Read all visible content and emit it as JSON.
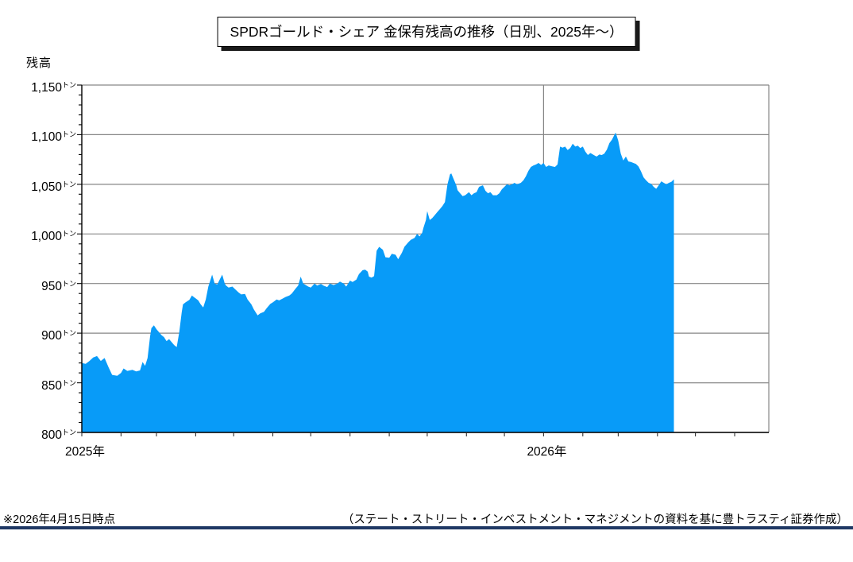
{
  "chart_data": {
    "type": "area",
    "title": "SPDRゴールド・シェア 金保有残高の推移（日別、2025年～）",
    "ylabel": "残高",
    "unit": "トン",
    "ylim": [
      800,
      1150
    ],
    "y_major_step": 50,
    "y_minor_step": 10,
    "y_tick_labels": [
      "1,150",
      "1,100",
      "1,050",
      "1,000",
      "950",
      "900",
      "850",
      "800"
    ],
    "x_ticks": [
      {
        "label": "2025年",
        "day": 0
      },
      {
        "label": "2026年",
        "day": 365
      }
    ],
    "x_month_tick_days": [
      0,
      31,
      59,
      90,
      120,
      151,
      181,
      212,
      243,
      273,
      304,
      334,
      365,
      396,
      424,
      455,
      485,
      516
    ],
    "x_axis_end_day": 543,
    "x_year_gridline_day": 365,
    "grid": true,
    "legend_position": "none",
    "series": [
      {
        "name": "金保有残高",
        "color": "#089bf8",
        "points": [
          [
            0,
            870
          ],
          [
            3,
            869
          ],
          [
            6,
            872
          ],
          [
            9,
            875.5
          ],
          [
            12,
            877
          ],
          [
            15,
            872
          ],
          [
            18,
            875
          ],
          [
            21,
            866
          ],
          [
            24,
            858
          ],
          [
            28,
            857
          ],
          [
            31,
            860
          ],
          [
            33,
            864.5
          ],
          [
            36,
            862
          ],
          [
            40,
            863
          ],
          [
            43,
            861.5
          ],
          [
            46,
            862.5
          ],
          [
            48,
            871
          ],
          [
            50,
            867
          ],
          [
            52,
            875
          ],
          [
            54,
            897
          ],
          [
            55,
            905
          ],
          [
            57,
            908
          ],
          [
            59,
            904
          ],
          [
            61,
            901
          ],
          [
            63,
            898
          ],
          [
            65,
            896
          ],
          [
            67,
            892
          ],
          [
            69,
            894
          ],
          [
            71,
            891
          ],
          [
            73,
            888
          ],
          [
            75,
            886
          ],
          [
            77,
            901
          ],
          [
            79,
            921
          ],
          [
            80,
            929
          ],
          [
            82,
            931
          ],
          [
            85,
            933.5
          ],
          [
            87,
            938
          ],
          [
            89,
            936
          ],
          [
            90,
            935
          ],
          [
            92,
            933
          ],
          [
            94,
            929
          ],
          [
            96,
            926
          ],
          [
            98,
            934
          ],
          [
            100,
            947
          ],
          [
            102,
            955
          ],
          [
            103,
            959
          ],
          [
            105,
            950
          ],
          [
            107,
            949
          ],
          [
            109,
            954
          ],
          [
            111,
            959
          ],
          [
            113,
            950
          ],
          [
            114,
            948
          ],
          [
            116,
            946
          ],
          [
            119,
            947
          ],
          [
            121,
            944.5
          ],
          [
            124,
            941
          ],
          [
            126,
            939
          ],
          [
            129,
            939.5
          ],
          [
            131,
            934
          ],
          [
            134,
            929
          ],
          [
            136,
            924
          ],
          [
            139,
            918
          ],
          [
            141,
            920
          ],
          [
            144,
            921.5
          ],
          [
            146,
            925
          ],
          [
            149,
            929.5
          ],
          [
            151,
            931
          ],
          [
            154,
            934
          ],
          [
            156,
            933
          ],
          [
            159,
            935
          ],
          [
            161,
            936.5
          ],
          [
            164,
            938
          ],
          [
            166,
            940
          ],
          [
            169,
            945
          ],
          [
            171,
            948
          ],
          [
            173,
            957
          ],
          [
            175,
            950
          ],
          [
            177,
            948.5
          ],
          [
            179,
            947
          ],
          [
            181,
            946
          ],
          [
            184,
            950
          ],
          [
            186,
            948
          ],
          [
            189,
            949.5
          ],
          [
            191,
            948
          ],
          [
            194,
            946.5
          ],
          [
            196,
            950
          ],
          [
            199,
            948.5
          ],
          [
            202,
            950
          ],
          [
            204,
            952
          ],
          [
            207,
            950
          ],
          [
            209,
            947
          ],
          [
            212,
            953
          ],
          [
            214,
            951.5
          ],
          [
            217,
            954
          ],
          [
            219,
            959.5
          ],
          [
            222,
            963.5
          ],
          [
            224,
            964
          ],
          [
            226,
            962
          ],
          [
            227,
            957
          ],
          [
            229,
            956
          ],
          [
            231,
            957.5
          ],
          [
            233,
            983
          ],
          [
            235,
            987
          ],
          [
            238,
            984
          ],
          [
            240,
            976.5
          ],
          [
            243,
            976
          ],
          [
            245,
            980
          ],
          [
            248,
            979
          ],
          [
            250,
            974.5
          ],
          [
            253,
            981
          ],
          [
            255,
            987
          ],
          [
            258,
            991.5
          ],
          [
            260,
            994
          ],
          [
            263,
            996
          ],
          [
            265,
            1000
          ],
          [
            267,
            997.5
          ],
          [
            269,
            1001
          ],
          [
            270,
            1006
          ],
          [
            272,
            1014
          ],
          [
            273,
            1023
          ],
          [
            275,
            1014
          ],
          [
            277,
            1016
          ],
          [
            279,
            1019
          ],
          [
            281,
            1022
          ],
          [
            283,
            1025
          ],
          [
            285,
            1028
          ],
          [
            287,
            1032
          ],
          [
            289,
            1050
          ],
          [
            291,
            1060
          ],
          [
            292,
            1061
          ],
          [
            294,
            1055
          ],
          [
            296,
            1049
          ],
          [
            297,
            1044
          ],
          [
            299,
            1041
          ],
          [
            301,
            1038
          ],
          [
            303,
            1039
          ],
          [
            306,
            1042
          ],
          [
            308,
            1039
          ],
          [
            310,
            1041
          ],
          [
            312,
            1042
          ],
          [
            314,
            1047.5
          ],
          [
            317,
            1049
          ],
          [
            319,
            1043.5
          ],
          [
            321,
            1041
          ],
          [
            323,
            1042
          ],
          [
            325,
            1039
          ],
          [
            328,
            1039
          ],
          [
            330,
            1041
          ],
          [
            332,
            1045
          ],
          [
            334,
            1047.5
          ],
          [
            336,
            1050
          ],
          [
            338,
            1049
          ],
          [
            340,
            1050
          ],
          [
            342,
            1051.5
          ],
          [
            344,
            1050
          ],
          [
            347,
            1051.5
          ],
          [
            349,
            1054
          ],
          [
            351,
            1058
          ],
          [
            353,
            1063.5
          ],
          [
            355,
            1067.5
          ],
          [
            357,
            1069
          ],
          [
            359,
            1070
          ],
          [
            361,
            1071.5
          ],
          [
            363,
            1069.5
          ],
          [
            365,
            1071.5
          ],
          [
            367,
            1067.5
          ],
          [
            369,
            1069
          ],
          [
            372,
            1068
          ],
          [
            374,
            1067.5
          ],
          [
            376,
            1070
          ],
          [
            378,
            1088
          ],
          [
            380,
            1087
          ],
          [
            382,
            1088
          ],
          [
            384,
            1084.5
          ],
          [
            386,
            1086.5
          ],
          [
            388,
            1091
          ],
          [
            390,
            1088
          ],
          [
            392,
            1089
          ],
          [
            394,
            1086.5
          ],
          [
            396,
            1088
          ],
          [
            398,
            1083
          ],
          [
            400,
            1079.5
          ],
          [
            402,
            1081.5
          ],
          [
            404,
            1080
          ],
          [
            406,
            1078.5
          ],
          [
            407,
            1078
          ],
          [
            409,
            1080
          ],
          [
            411,
            1079.5
          ],
          [
            413,
            1081
          ],
          [
            415,
            1085
          ],
          [
            417,
            1091.5
          ],
          [
            419,
            1095
          ],
          [
            421,
            1100
          ],
          [
            422,
            1102
          ],
          [
            424,
            1094
          ],
          [
            426,
            1081
          ],
          [
            428,
            1074
          ],
          [
            430,
            1078
          ],
          [
            432,
            1073
          ],
          [
            434,
            1072.5
          ],
          [
            436,
            1071.5
          ],
          [
            438,
            1070.5
          ],
          [
            440,
            1068
          ],
          [
            442,
            1063
          ],
          [
            444,
            1057
          ],
          [
            446,
            1054
          ],
          [
            448,
            1051.5
          ],
          [
            450,
            1050.5
          ],
          [
            452,
            1047.5
          ],
          [
            454,
            1045.5
          ],
          [
            456,
            1049
          ],
          [
            458,
            1053
          ],
          [
            460,
            1051.5
          ],
          [
            462,
            1050
          ],
          [
            464,
            1051.5
          ],
          [
            466,
            1052.5
          ],
          [
            468,
            1055
          ]
        ]
      }
    ]
  },
  "notes": {
    "asof": "※2026年4月15日時点",
    "source": "（ステート・ストリート・インベストメント・マネジメントの資料を基に豊トラスティ証券作成）"
  },
  "colors": {
    "area": "#089bf8",
    "grid": "#868686",
    "axis": "#000000",
    "tick": "#333333",
    "rule": "#1f3864"
  }
}
